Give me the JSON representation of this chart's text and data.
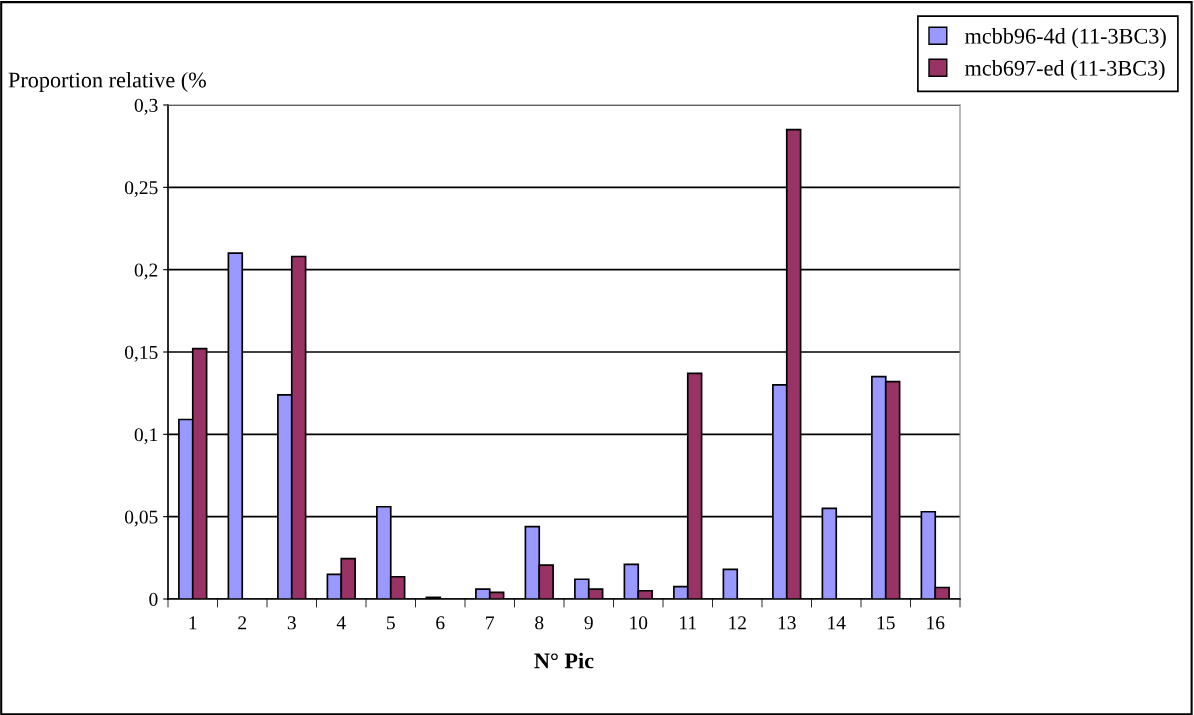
{
  "chart_data": {
    "type": "bar",
    "ylabel": "Proportion relative (%",
    "xlabel": "N° Pic",
    "categories": [
      "1",
      "2",
      "3",
      "4",
      "5",
      "6",
      "7",
      "8",
      "9",
      "10",
      "11",
      "12",
      "13",
      "14",
      "15",
      "16"
    ],
    "series": [
      {
        "name": "mcbb96-4d (11-3BC3)",
        "color": "#9999ff",
        "values": [
          0.109,
          0.21,
          0.124,
          0.015,
          0.056,
          0.001,
          0.006,
          0.044,
          0.012,
          0.021,
          0.0075,
          0.018,
          0.13,
          0.055,
          0.135,
          0.053
        ]
      },
      {
        "name": "mcb697-ed (11-3BC3)",
        "color": "#993366",
        "values": [
          0.152,
          null,
          0.208,
          0.0245,
          0.0135,
          null,
          0.004,
          0.0206,
          0.006,
          0.005,
          0.137,
          null,
          0.285,
          null,
          0.132,
          0.007
        ]
      }
    ],
    "ylim": [
      0,
      0.3
    ],
    "yticks": [
      {
        "value": 0,
        "label": "0"
      },
      {
        "value": 0.05,
        "label": "0,05"
      },
      {
        "value": 0.1,
        "label": "0,1"
      },
      {
        "value": 0.15,
        "label": "0,15"
      },
      {
        "value": 0.2,
        "label": "0,2"
      },
      {
        "value": 0.25,
        "label": "0,25"
      },
      {
        "value": 0.3,
        "label": "0,3"
      }
    ],
    "grid": "y",
    "legend": "top right"
  }
}
